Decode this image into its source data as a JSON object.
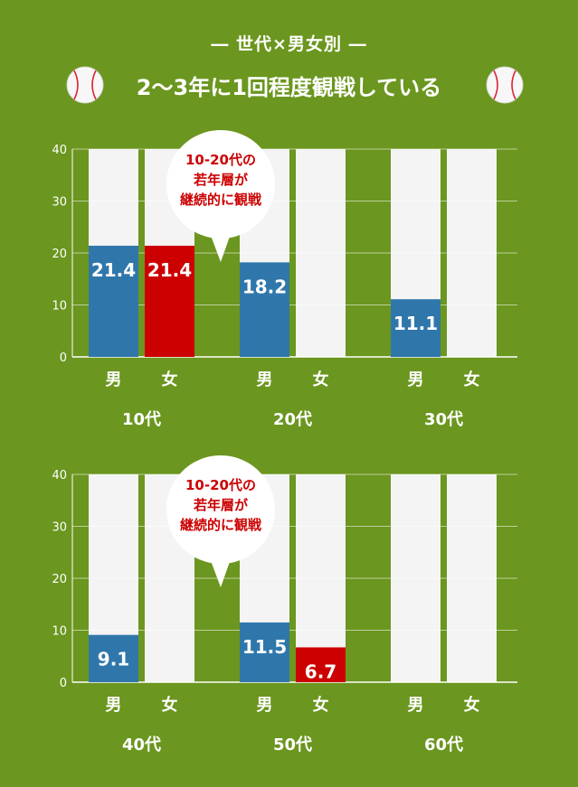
{
  "header": {
    "subtitle": "― 世代×男女別 ―",
    "title": "2〜3年に1回程度観戦している",
    "ball_icon": "baseball-icon"
  },
  "bubble": {
    "lines": [
      "10-20代の",
      "若年層が",
      "継続的に観戦"
    ]
  },
  "colors": {
    "background": "#6b961f",
    "male": "#2f77ab",
    "female": "#cc0000",
    "track": "#f4f4f4"
  },
  "chart_data": [
    {
      "type": "bar",
      "ylim": [
        0,
        40
      ],
      "yticks": [
        0,
        10,
        20,
        30,
        40
      ],
      "groups": [
        "10代",
        "20代",
        "30代"
      ],
      "sublabels": [
        "男",
        "女"
      ],
      "series": [
        {
          "name": "男",
          "values": [
            21.4,
            18.2,
            11.1
          ]
        },
        {
          "name": "女",
          "values": [
            21.4,
            0,
            0
          ]
        }
      ],
      "value_labels": [
        [
          "21.4",
          "21.4"
        ],
        [
          "18.2",
          ""
        ],
        [
          "11.1",
          ""
        ]
      ]
    },
    {
      "type": "bar",
      "ylim": [
        0,
        40
      ],
      "yticks": [
        0,
        10,
        20,
        30,
        40
      ],
      "groups": [
        "40代",
        "50代",
        "60代"
      ],
      "sublabels": [
        "男",
        "女"
      ],
      "series": [
        {
          "name": "男",
          "values": [
            9.1,
            11.5,
            0
          ]
        },
        {
          "name": "女",
          "values": [
            0,
            6.7,
            0
          ]
        }
      ],
      "value_labels": [
        [
          "9.1",
          ""
        ],
        [
          "11.5",
          "6.7"
        ],
        [
          "",
          ""
        ]
      ]
    }
  ]
}
